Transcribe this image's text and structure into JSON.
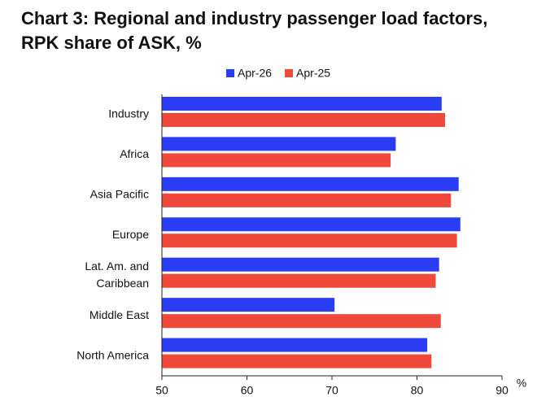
{
  "chart_data": {
    "type": "barh",
    "title": "Chart 3: Regional and industry passenger load factors, RPK share of ASK, %",
    "categories": [
      "Industry",
      "Africa",
      "Asia Pacific",
      "Europe",
      "Lat. Am. and\nCaribbean",
      "Middle East",
      "North America"
    ],
    "series": [
      {
        "name": "Apr-26",
        "color": "#2b3cf5",
        "values": [
          82.9,
          77.5,
          84.9,
          85.1,
          82.6,
          70.3,
          81.2
        ]
      },
      {
        "name": "Apr-25",
        "color": "#f0483a",
        "values": [
          83.3,
          76.9,
          84.0,
          84.7,
          82.2,
          82.8,
          81.7
        ]
      }
    ],
    "xlim": [
      50,
      90
    ],
    "xticks": [
      50,
      60,
      70,
      80,
      90
    ],
    "x_label": "%",
    "grid": false,
    "legend": "top"
  }
}
